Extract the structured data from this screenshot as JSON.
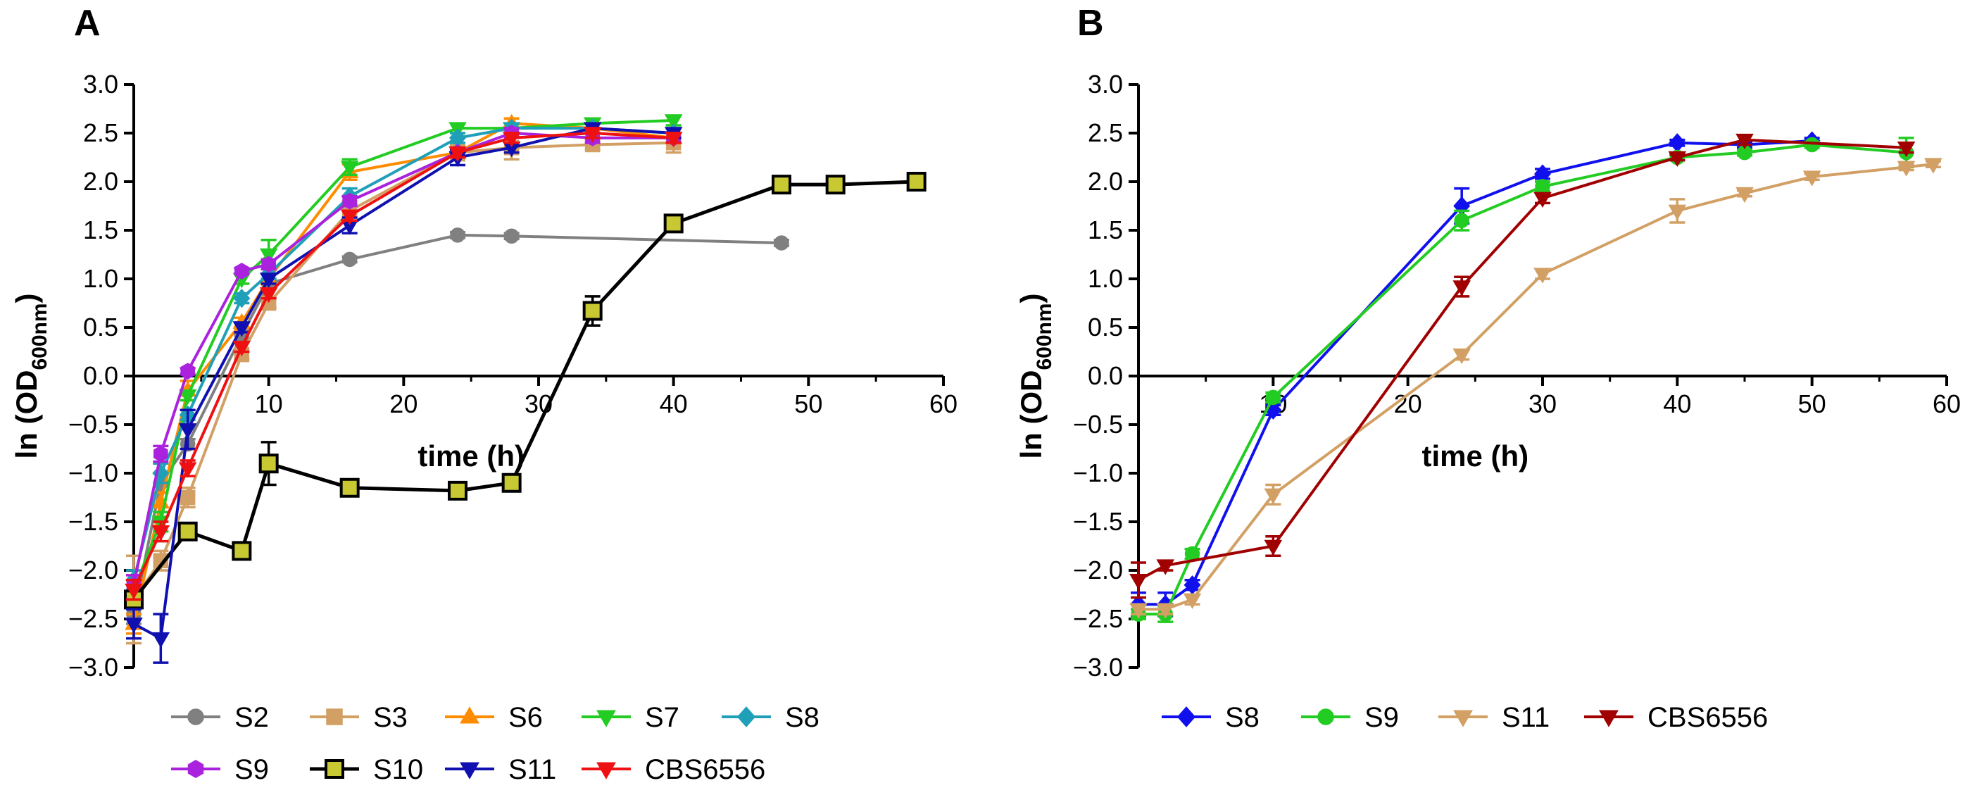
{
  "figure": {
    "panels": [
      "A",
      "B"
    ]
  },
  "chart_data": [
    {
      "type": "line",
      "panel": "A",
      "xlabel": "time (h)",
      "ylabel_main": "ln (OD",
      "ylabel_sub": "600nm",
      "ylabel_close": ")",
      "xlim": [
        0,
        60
      ],
      "ylim": [
        -3.0,
        3.0
      ],
      "xticks": [
        10,
        20,
        30,
        40,
        50,
        60
      ],
      "yticks": [
        -3.0,
        -2.5,
        -2.0,
        -1.5,
        -1.0,
        -0.5,
        0.0,
        0.5,
        1.0,
        1.5,
        2.0,
        2.5,
        3.0
      ],
      "ytick_labels": [
        "−3.0",
        "−2.5",
        "−2.0",
        "−1.5",
        "−1.0",
        "−0.5",
        "0.0",
        "0.5",
        "1.0",
        "1.5",
        "2.0",
        "2.5",
        "3.0"
      ],
      "series": [
        {
          "name": "S2",
          "color": "#808080",
          "marker": "circle",
          "points": [
            [
              0,
              -2.45
            ],
            [
              2,
              -1.1
            ],
            [
              4,
              -0.7
            ],
            [
              8,
              0.42
            ],
            [
              10,
              0.95
            ],
            [
              16,
              1.2
            ],
            [
              24,
              1.45
            ],
            [
              28,
              1.44
            ],
            [
              48,
              1.37
            ]
          ],
          "errors": [
            0.1,
            0.1,
            0.05,
            0.05,
            0.05,
            0.03,
            0.03,
            0.03,
            0.03
          ]
        },
        {
          "name": "S3",
          "color": "#D2A064",
          "marker": "square",
          "points": [
            [
              0,
              -2.3
            ],
            [
              2,
              -1.9
            ],
            [
              4,
              -1.25
            ],
            [
              8,
              0.22
            ],
            [
              10,
              0.75
            ],
            [
              16,
              1.7
            ],
            [
              24,
              2.3
            ],
            [
              28,
              2.35
            ],
            [
              34,
              2.38
            ],
            [
              40,
              2.4
            ]
          ],
          "errors": [
            0.45,
            0.1,
            0.1,
            0.05,
            0.05,
            0.1,
            0.08,
            0.12,
            0.05,
            0.1
          ]
        },
        {
          "name": "S6",
          "color": "#FF8C00",
          "marker": "triangle-up",
          "points": [
            [
              0,
              -2.55
            ],
            [
              2,
              -1.3
            ],
            [
              4,
              -0.15
            ],
            [
              8,
              0.55
            ],
            [
              10,
              1.0
            ],
            [
              16,
              2.1
            ],
            [
              24,
              2.3
            ],
            [
              28,
              2.6
            ],
            [
              34,
              2.55
            ],
            [
              40,
              2.45
            ]
          ],
          "errors": [
            0.1,
            0.1,
            0.1,
            0.05,
            0.05,
            0.08,
            0.05,
            0.05,
            0.05,
            0.05
          ]
        },
        {
          "name": "S7",
          "color": "#22CC22",
          "marker": "triangle-down",
          "points": [
            [
              0,
              -2.2
            ],
            [
              2,
              -1.5
            ],
            [
              4,
              -0.2
            ],
            [
              8,
              1.0
            ],
            [
              10,
              1.25
            ],
            [
              16,
              2.15
            ],
            [
              24,
              2.55
            ],
            [
              28,
              2.55
            ],
            [
              34,
              2.6
            ],
            [
              40,
              2.63
            ]
          ],
          "errors": [
            0.1,
            0.1,
            0.05,
            0.05,
            0.15,
            0.08,
            0.05,
            0.05,
            0.05,
            0.05
          ]
        },
        {
          "name": "S8",
          "color": "#1FA0B8",
          "marker": "diamond",
          "points": [
            [
              0,
              -2.1
            ],
            [
              2,
              -1.0
            ],
            [
              4,
              -0.4
            ],
            [
              8,
              0.8
            ],
            [
              10,
              1.05
            ],
            [
              16,
              1.85
            ],
            [
              24,
              2.45
            ],
            [
              28,
              2.55
            ],
            [
              34,
              2.55
            ],
            [
              40,
              2.5
            ]
          ],
          "errors": [
            0.1,
            0.1,
            0.05,
            0.05,
            0.05,
            0.08,
            0.05,
            0.05,
            0.05,
            0.05
          ]
        },
        {
          "name": "S9",
          "color": "#AA22DD",
          "marker": "hexagon",
          "points": [
            [
              0,
              -2.15
            ],
            [
              2,
              -0.8
            ],
            [
              4,
              0.05
            ],
            [
              8,
              1.08
            ],
            [
              10,
              1.15
            ],
            [
              16,
              1.8
            ],
            [
              24,
              2.3
            ],
            [
              28,
              2.5
            ],
            [
              34,
              2.45
            ],
            [
              40,
              2.45
            ]
          ],
          "errors": [
            0.1,
            0.08,
            0.03,
            0.03,
            0.05,
            0.05,
            0.05,
            0.05,
            0.05,
            0.05
          ]
        },
        {
          "name": "S10",
          "color": "#000000",
          "fill": "#C8C832",
          "marker": "square-big",
          "points": [
            [
              0,
              -2.3
            ],
            [
              4,
              -1.6
            ],
            [
              8,
              -1.8
            ],
            [
              10,
              -0.9
            ],
            [
              16,
              -1.15
            ],
            [
              24,
              -1.18
            ],
            [
              28,
              -1.1
            ],
            [
              34,
              0.67
            ],
            [
              40,
              1.57
            ],
            [
              48,
              1.97
            ],
            [
              52,
              1.97
            ],
            [
              58,
              2.0
            ]
          ],
          "errors": [
            0.05,
            0.03,
            0.03,
            0.22,
            0.05,
            0.05,
            0.05,
            0.15,
            0.03,
            0.03,
            0.03,
            0.03
          ]
        },
        {
          "name": "S11",
          "color": "#1010B0",
          "marker": "triangle-down",
          "points": [
            [
              0,
              -2.55
            ],
            [
              2,
              -2.7
            ],
            [
              4,
              -0.55
            ],
            [
              8,
              0.5
            ],
            [
              10,
              1.0
            ],
            [
              16,
              1.55
            ],
            [
              24,
              2.25
            ],
            [
              28,
              2.35
            ],
            [
              34,
              2.55
            ],
            [
              40,
              2.5
            ]
          ],
          "errors": [
            0.15,
            0.25,
            0.2,
            0.05,
            0.05,
            0.08,
            0.08,
            0.05,
            0.05,
            0.05
          ]
        },
        {
          "name": "CBS6556",
          "color": "#EE1111",
          "marker": "triangle-down",
          "points": [
            [
              0,
              -2.2
            ],
            [
              2,
              -1.6
            ],
            [
              4,
              -0.95
            ],
            [
              8,
              0.3
            ],
            [
              10,
              0.85
            ],
            [
              16,
              1.65
            ],
            [
              24,
              2.3
            ],
            [
              28,
              2.45
            ],
            [
              34,
              2.5
            ],
            [
              40,
              2.45
            ]
          ],
          "errors": [
            0.1,
            0.1,
            0.08,
            0.05,
            0.05,
            0.05,
            0.05,
            0.05,
            0.05,
            0.05
          ]
        }
      ]
    },
    {
      "type": "line",
      "panel": "B",
      "xlabel": "time (h)",
      "ylabel_main": "ln (OD",
      "ylabel_sub": "600nm",
      "ylabel_close": ")",
      "xlim": [
        0,
        60
      ],
      "ylim": [
        -3.0,
        3.0
      ],
      "xticks": [
        10,
        20,
        30,
        40,
        50,
        60
      ],
      "yticks": [
        -3.0,
        -2.5,
        -2.0,
        -1.5,
        -1.0,
        -0.5,
        0.0,
        0.5,
        1.0,
        1.5,
        2.0,
        2.5,
        3.0
      ],
      "ytick_labels": [
        "−3.0",
        "−2.5",
        "−2.0",
        "−1.5",
        "−1.0",
        "−0.5",
        "0.0",
        "0.5",
        "1.0",
        "1.5",
        "2.0",
        "2.5",
        "3.0"
      ],
      "series": [
        {
          "name": "S8",
          "color": "#1010EE",
          "marker": "diamond",
          "points": [
            [
              0,
              -2.35
            ],
            [
              2,
              -2.35
            ],
            [
              4,
              -2.15
            ],
            [
              10,
              -0.35
            ],
            [
              24,
              1.75
            ],
            [
              30,
              2.08
            ],
            [
              40,
              2.4
            ],
            [
              45,
              2.38
            ],
            [
              50,
              2.42
            ]
          ],
          "errors": [
            0.12,
            0.12,
            0.05,
            0.05,
            0.18,
            0.05,
            0.03,
            0.03,
            0.03
          ]
        },
        {
          "name": "S9",
          "color": "#22CC22",
          "marker": "circle",
          "points": [
            [
              0,
              -2.45
            ],
            [
              2,
              -2.45
            ],
            [
              4,
              -1.83
            ],
            [
              10,
              -0.22
            ],
            [
              24,
              1.6
            ],
            [
              30,
              1.95
            ],
            [
              40,
              2.25
            ],
            [
              45,
              2.3
            ],
            [
              50,
              2.38
            ],
            [
              57,
              2.3
            ]
          ],
          "errors": [
            0.05,
            0.08,
            0.05,
            0.05,
            0.1,
            0.05,
            0.03,
            0.03,
            0.03,
            0.15
          ]
        },
        {
          "name": "S11",
          "color": "#D2A064",
          "marker": "triangle-down",
          "points": [
            [
              0,
              -2.4
            ],
            [
              2,
              -2.4
            ],
            [
              4,
              -2.3
            ],
            [
              10,
              -1.22
            ],
            [
              24,
              0.22
            ],
            [
              30,
              1.05
            ],
            [
              40,
              1.7
            ],
            [
              45,
              1.88
            ],
            [
              50,
              2.05
            ],
            [
              57,
              2.15
            ],
            [
              59,
              2.18
            ]
          ],
          "errors": [
            0.05,
            0.05,
            0.05,
            0.1,
            0.05,
            0.05,
            0.12,
            0.03,
            0.03,
            0.03,
            0.03
          ]
        },
        {
          "name": "CBS6556",
          "color": "#A00000",
          "marker": "triangle-down",
          "points": [
            [
              0,
              -2.1
            ],
            [
              2,
              -1.95
            ],
            [
              10,
              -1.75
            ],
            [
              24,
              0.92
            ],
            [
              30,
              1.83
            ],
            [
              40,
              2.25
            ],
            [
              45,
              2.43
            ],
            [
              57,
              2.35
            ]
          ],
          "errors": [
            0.18,
            0.05,
            0.1,
            0.1,
            0.05,
            0.03,
            0.05,
            0.05
          ]
        }
      ]
    }
  ]
}
